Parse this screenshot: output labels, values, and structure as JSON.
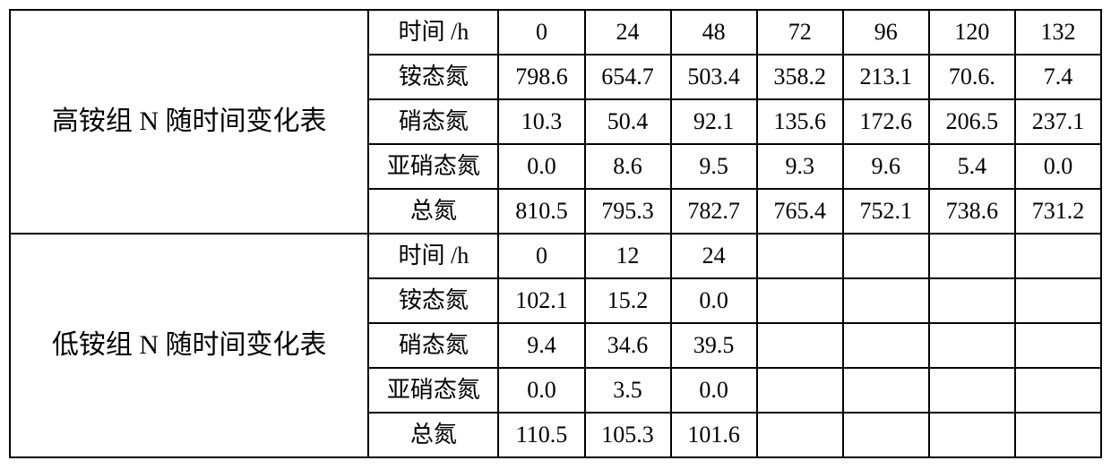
{
  "groups": [
    {
      "title": "高铵组 N 随时间变化表",
      "rows": [
        {
          "label": "时间 /h",
          "cells": [
            "0",
            "24",
            "48",
            "72",
            "96",
            "120",
            "132"
          ]
        },
        {
          "label": "铵态氮",
          "cells": [
            "798.6",
            "654.7",
            "503.4",
            "358.2",
            "213.1",
            "70.6.",
            "7.4"
          ]
        },
        {
          "label": "硝态氮",
          "cells": [
            "10.3",
            "50.4",
            "92.1",
            "135.6",
            "172.6",
            "206.5",
            "237.1"
          ]
        },
        {
          "label": "亚硝态氮",
          "cells": [
            "0.0",
            "8.6",
            "9.5",
            "9.3",
            "9.6",
            "5.4",
            "0.0"
          ]
        },
        {
          "label": "总氮",
          "cells": [
            "810.5",
            "795.3",
            "782.7",
            "765.4",
            "752.1",
            "738.6",
            "731.2"
          ]
        }
      ]
    },
    {
      "title": "低铵组 N 随时间变化表",
      "rows": [
        {
          "label": "时间 /h",
          "cells": [
            "0",
            "12",
            "24",
            "",
            "",
            "",
            ""
          ]
        },
        {
          "label": "铵态氮",
          "cells": [
            "102.1",
            "15.2",
            "0.0",
            "",
            "",
            "",
            ""
          ]
        },
        {
          "label": "硝态氮",
          "cells": [
            "9.4",
            "34.6",
            "39.5",
            "",
            "",
            "",
            ""
          ]
        },
        {
          "label": "亚硝态氮",
          "cells": [
            "0.0",
            "3.5",
            "0.0",
            "",
            "",
            "",
            ""
          ]
        },
        {
          "label": "总氮",
          "cells": [
            "110.5",
            "105.3",
            "101.6",
            "",
            "",
            "",
            ""
          ]
        }
      ]
    }
  ]
}
